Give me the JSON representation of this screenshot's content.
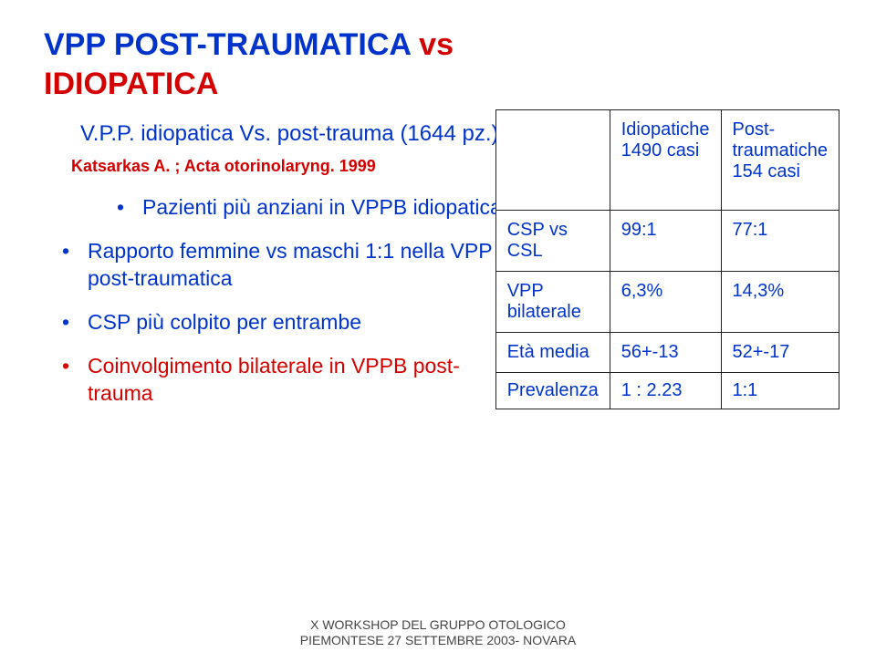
{
  "title": {
    "part1": "VPP POST-TRAUMATICA",
    "part2": " vs ",
    "part3": "IDIOPATICA"
  },
  "subtitle": "V.P.P. idiopatica Vs. post-trauma (1644 pz.)",
  "reference": "Katsarkas A. ; Acta otorinolaryng. 1999",
  "bullets": [
    "Pazienti più anziani in VPPB idiopatica",
    "Rapporto femmine vs maschi 1:1 nella VPP post-traumatica",
    "CSP più colpito per entrambe",
    "Coinvolgimento bilaterale in VPPB post-trauma"
  ],
  "table": {
    "header": {
      "col1": "Idiopatiche\n1490 casi",
      "col2": "Post-\ntraumatiche\n154 casi"
    },
    "rows": [
      {
        "label": "CSP vs CSL",
        "c1": "99:1",
        "c2": "77:1"
      },
      {
        "label": "VPP bilaterale",
        "c1": "6,3%",
        "c2": "14,3%"
      },
      {
        "label": "Età media",
        "c1": "56+-13",
        "c2": "52+-17"
      },
      {
        "label": "Prevalenza",
        "c1": "1 : 2.23",
        "c2": "1:1"
      }
    ]
  },
  "footer": {
    "line1": "X WORKSHOP DEL GRUPPO OTOLOGICO",
    "line2": "PIEMONTESE 27 SETTEMBRE 2003- NOVARA"
  },
  "colors": {
    "blue": "#0033cc",
    "red": "#d40000",
    "border": "#222222",
    "bg": "#ffffff"
  }
}
